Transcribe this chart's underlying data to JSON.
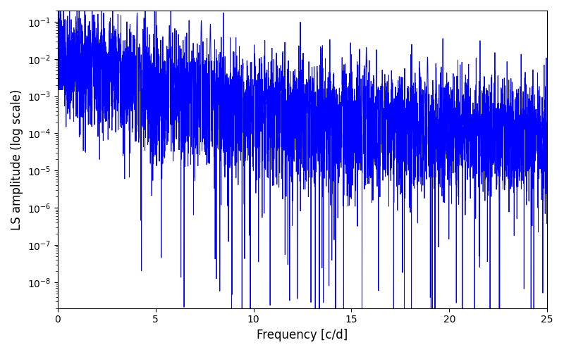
{
  "xlabel": "Frequency [c/d]",
  "ylabel": "LS amplitude (log scale)",
  "line_color": "#0000ff",
  "line_width": 0.7,
  "xlim": [
    0,
    25
  ],
  "ylim": [
    2e-09,
    0.2
  ],
  "freq_max": 25.0,
  "num_points": 8000,
  "seed": 7,
  "base_amplitude": 0.005,
  "noise_floor": 5e-07,
  "figsize": [
    8.0,
    5.0
  ],
  "dpi": 100
}
